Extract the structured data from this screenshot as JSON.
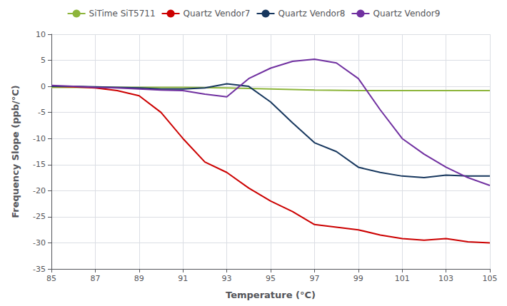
{
  "chart_data": {
    "type": "line",
    "xlabel": "Temperature (°C)",
    "ylabel": "Frequency Slope (ppb/°C)",
    "xlim": [
      85,
      105
    ],
    "ylim": [
      -35,
      10
    ],
    "xticks": [
      85,
      87,
      89,
      91,
      93,
      95,
      97,
      99,
      101,
      103,
      105
    ],
    "yticks": [
      -35,
      -30,
      -25,
      -20,
      -15,
      -10,
      -5,
      0,
      5,
      10
    ],
    "grid": true,
    "legend": "top",
    "series": [
      {
        "name": "SiTime SiT5711",
        "color": "#8DB53B",
        "x": [
          85,
          87,
          89,
          91,
          93,
          95,
          97,
          99,
          101,
          103,
          105
        ],
        "values": [
          -0.2,
          -0.2,
          -0.2,
          -0.2,
          -0.3,
          -0.5,
          -0.7,
          -0.8,
          -0.8,
          -0.8,
          -0.8
        ]
      },
      {
        "name": "Quartz Vendor7",
        "color": "#CC0000",
        "x": [
          85,
          86,
          87,
          88,
          89,
          90,
          91,
          92,
          93,
          94,
          95,
          96,
          97,
          98,
          99,
          100,
          101,
          102,
          103,
          104,
          105
        ],
        "values": [
          0.0,
          -0.1,
          -0.3,
          -0.8,
          -1.8,
          -5.0,
          -10.0,
          -14.5,
          -16.5,
          -19.5,
          -22.0,
          -24.0,
          -26.5,
          -27.0,
          -27.5,
          -28.5,
          -29.2,
          -29.5,
          -29.2,
          -29.8,
          -30.0
        ]
      },
      {
        "name": "Quartz Vendor8",
        "color": "#17375E",
        "x": [
          85,
          86,
          87,
          88,
          89,
          90,
          91,
          92,
          93,
          94,
          95,
          96,
          97,
          98,
          99,
          100,
          101,
          102,
          103,
          104,
          105
        ],
        "values": [
          0.0,
          0.0,
          -0.1,
          -0.2,
          -0.3,
          -0.5,
          -0.5,
          -0.3,
          0.5,
          0.0,
          -3.0,
          -7.0,
          -10.8,
          -12.5,
          -15.5,
          -16.5,
          -17.2,
          -17.5,
          -17.0,
          -17.2,
          -17.2
        ]
      },
      {
        "name": "Quartz Vendor9",
        "color": "#7030A0",
        "x": [
          85,
          86,
          87,
          88,
          89,
          90,
          91,
          92,
          93,
          94,
          95,
          96,
          97,
          98,
          99,
          100,
          101,
          102,
          103,
          104,
          105
        ],
        "values": [
          0.2,
          0.0,
          -0.2,
          -0.3,
          -0.5,
          -0.7,
          -0.8,
          -1.5,
          -2.0,
          1.5,
          3.5,
          4.8,
          5.2,
          4.5,
          1.5,
          -4.5,
          -10.0,
          -13.0,
          -15.5,
          -17.5,
          -19.0
        ]
      }
    ]
  }
}
